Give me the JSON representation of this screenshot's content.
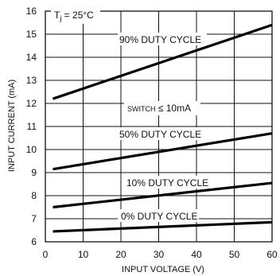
{
  "chart_data": {
    "type": "line",
    "xlabel": "INPUT VOLTAGE (V)",
    "ylabel": "INPUT CURRENT (mA)",
    "xlim": [
      0,
      60
    ],
    "ylim": [
      6,
      16
    ],
    "x_ticks": [
      0,
      10,
      20,
      30,
      40,
      50,
      60
    ],
    "y_ticks": [
      6,
      7,
      8,
      9,
      10,
      11,
      12,
      13,
      14,
      15,
      16
    ],
    "grid": true,
    "series": [
      {
        "name": "90% DUTY CYCLE",
        "x": [
          2,
          60
        ],
        "y": [
          12.2,
          15.4
        ]
      },
      {
        "name": "50% DUTY CYCLE",
        "x": [
          2,
          60
        ],
        "y": [
          9.15,
          10.7
        ]
      },
      {
        "name": "10% DUTY CYCLE",
        "x": [
          2,
          60
        ],
        "y": [
          7.5,
          8.55
        ]
      },
      {
        "name": "0% DUTY CYCLE",
        "x": [
          2,
          60
        ],
        "y": [
          6.45,
          6.85
        ]
      }
    ],
    "annotations": {
      "condition": "T",
      "condition_sub": "j",
      "condition_value": " = 25°C",
      "switch_label": "SWITCH",
      "switch_value": " ≤ 10mA"
    }
  }
}
